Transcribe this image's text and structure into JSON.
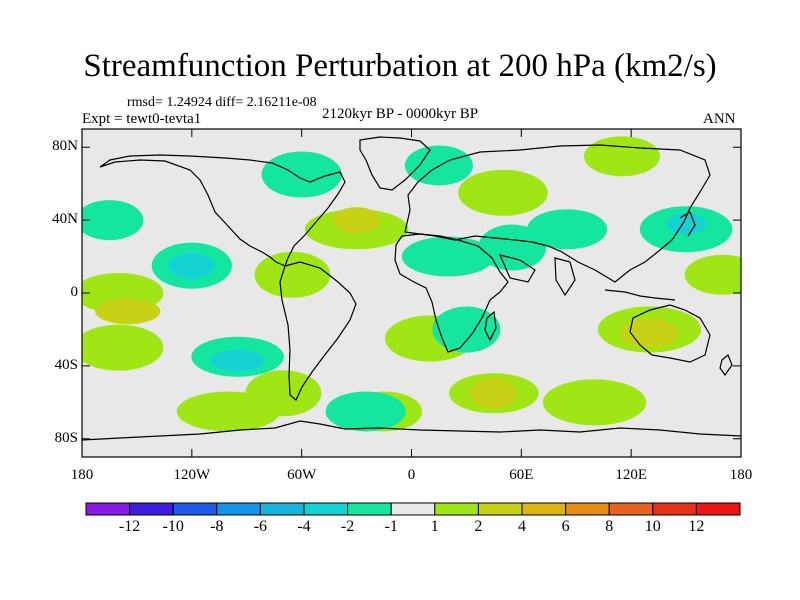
{
  "title": "Streamfunction Perturbation at 200 hPa (km2/s)",
  "stats": "rmsd= 1.24924 diff= 2.16211e-08",
  "experiment": "Expt = tewt0-tevta1",
  "period": "2120kyr BP - 0000kyr BP",
  "season": "ANN",
  "lat_ticks": [
    "80N",
    "40N",
    "0",
    "40S",
    "80S"
  ],
  "lon_ticks": [
    "180",
    "120W",
    "60W",
    "0",
    "60E",
    "120E",
    "180"
  ],
  "colorbar": {
    "labels": [
      "-12",
      "-10",
      "-8",
      "-6",
      "-4",
      "-2",
      "-1",
      "1",
      "2",
      "4",
      "6",
      "8",
      "10",
      "12"
    ],
    "colors": [
      "#8a19e6",
      "#3c1edc",
      "#1e5ae6",
      "#1496e6",
      "#14b4dc",
      "#14d2d2",
      "#14e6a0",
      "#e8e8e8",
      "#a0e614",
      "#c8d214",
      "#dcb414",
      "#e68c14",
      "#e6641e",
      "#e63214",
      "#f01414"
    ]
  },
  "palette": {
    "neutral": "#e8e8e8",
    "n1": "#14e6a0",
    "n2": "#14d2d2",
    "p1": "#a0e614",
    "p2": "#c8d214",
    "p3": "#dcb414"
  },
  "map_fields": {
    "negative_1": [
      {
        "lon": 15,
        "lat": 70
      },
      {
        "lon": -60,
        "lat": 65
      },
      {
        "lon": 20,
        "lat": 20
      },
      {
        "lon": 55,
        "lat": 25
      },
      {
        "lon": 85,
        "lat": 35
      },
      {
        "lon": 150,
        "lat": 35
      },
      {
        "lon": -165,
        "lat": 40
      },
      {
        "lon": -120,
        "lat": 15
      },
      {
        "lon": -95,
        "lat": -35
      },
      {
        "lon": 30,
        "lat": -20
      },
      {
        "lon": -25,
        "lat": -65
      }
    ],
    "negative_2": [
      {
        "lon": 150,
        "lat": 38
      },
      {
        "lon": -120,
        "lat": 15
      },
      {
        "lon": -95,
        "lat": -37
      }
    ],
    "positive_1": [
      {
        "lon": 115,
        "lat": 75
      },
      {
        "lon": 50,
        "lat": 55
      },
      {
        "lon": -30,
        "lat": 35
      },
      {
        "lon": -65,
        "lat": 10
      },
      {
        "lon": -160,
        "lat": 0
      },
      {
        "lon": 130,
        "lat": -20
      },
      {
        "lon": 170,
        "lat": 10
      },
      {
        "lon": -160,
        "lat": -30
      },
      {
        "lon": -100,
        "lat": -65
      },
      {
        "lon": -70,
        "lat": -55
      },
      {
        "lon": 45,
        "lat": -55
      },
      {
        "lon": 100,
        "lat": -60
      },
      {
        "lon": -15,
        "lat": -65
      },
      {
        "lon": 10,
        "lat": -25
      }
    ],
    "positive_2": [
      {
        "lon": -30,
        "lat": 40
      },
      {
        "lon": 130,
        "lat": -22
      },
      {
        "lon": -155,
        "lat": -10
      },
      {
        "lon": 45,
        "lat": -55
      }
    ]
  }
}
